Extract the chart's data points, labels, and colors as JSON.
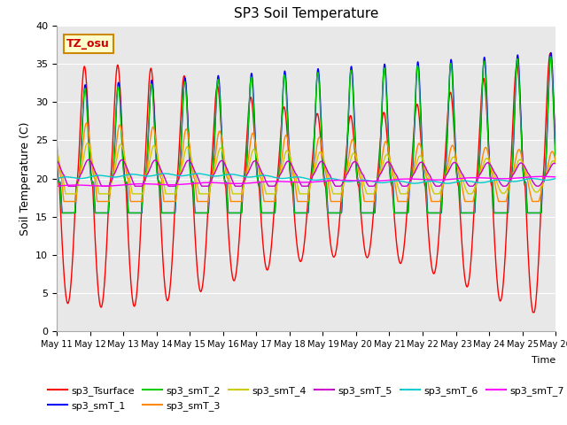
{
  "title": "SP3 Soil Temperature",
  "xlabel": "Time",
  "ylabel": "Soil Temperature (C)",
  "ylim": [
    0,
    40
  ],
  "background_color": "#e8e8e8",
  "annotation_text": "TZ_osu",
  "annotation_color": "#cc0000",
  "annotation_bg": "#ffffcc",
  "annotation_border": "#cc8800",
  "series_colors": {
    "sp3_Tsurface": "#ff0000",
    "sp3_smT_1": "#0000ff",
    "sp3_smT_2": "#00cc00",
    "sp3_smT_3": "#ff8800",
    "sp3_smT_4": "#cccc00",
    "sp3_smT_5": "#cc00cc",
    "sp3_smT_6": "#00cccc",
    "sp3_smT_7": "#ff00ff"
  },
  "x_tick_labels": [
    "May 11",
    "May 12",
    "May 13",
    "May 14",
    "May 15",
    "May 16",
    "May 17",
    "May 18",
    "May 19",
    "May 20",
    "May 21",
    "May 22",
    "May 23",
    "May 24",
    "May 25",
    "May 26"
  ],
  "n_days": 15,
  "pts_per_day": 144
}
